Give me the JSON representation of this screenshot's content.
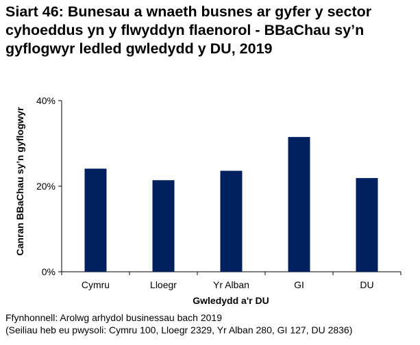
{
  "chart_data": {
    "type": "bar",
    "title": "Siart 46: Bunesau a wnaeth busnes ar gyfer y sector cyhoeddus yn y flwyddyn flaenorol - BBaChau sy’n gyflogwyr ledled gwledydd y DU, 2019",
    "xlabel": "Gwledydd a'r DU",
    "ylabel": "Canran BBaChau sy’n gyflogwyr",
    "categories": [
      "Cymru",
      "Lloegr",
      "Yr Alban",
      "GI",
      "DU"
    ],
    "values": [
      24.1,
      21.4,
      23.6,
      31.5,
      21.9
    ],
    "ylim": [
      0,
      40
    ],
    "yticks": [
      "0%",
      "20%",
      "40%"
    ],
    "ytick_values": [
      0,
      20,
      40
    ],
    "grid": false,
    "bar_color": "#002060"
  },
  "notes": {
    "source": "Ffynhonnell: Arolwg arhydol businessau bach 2019",
    "bases": "(Seiliau heb eu pwysoli: Cymru 100, Lloegr 2329, Yr Alban 280, GI 127, DU 2836)"
  }
}
